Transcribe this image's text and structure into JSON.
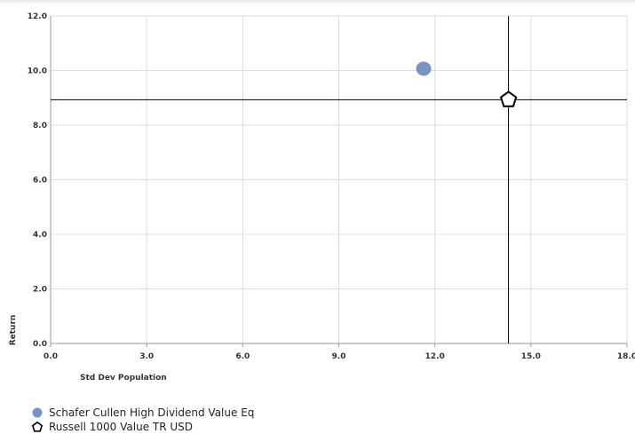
{
  "chart_data": {
    "type": "scatter",
    "xlabel": "Std Dev Population",
    "ylabel": "Return",
    "xlim": [
      0,
      18
    ],
    "ylim": [
      0,
      12
    ],
    "xticks": [
      "0.0",
      "3.0",
      "6.0",
      "9.0",
      "12.0",
      "15.0",
      "18.0"
    ],
    "yticks": [
      "0.0",
      "2.0",
      "4.0",
      "6.0",
      "8.0",
      "10.0",
      "12.0"
    ],
    "grid": true,
    "legend_position": "bottom-left",
    "series": [
      {
        "name": "Schafer Cullen High Dividend Value Eq",
        "marker": "circle",
        "color": "#7b93bf",
        "x": 11.65,
        "y": 10.07
      },
      {
        "name": "Russell 1000 Value TR USD",
        "marker": "pentagon",
        "color": "#000000",
        "x": 14.3,
        "y": 8.93
      }
    ],
    "reference_lines": {
      "x": 14.3,
      "y": 8.93
    }
  }
}
